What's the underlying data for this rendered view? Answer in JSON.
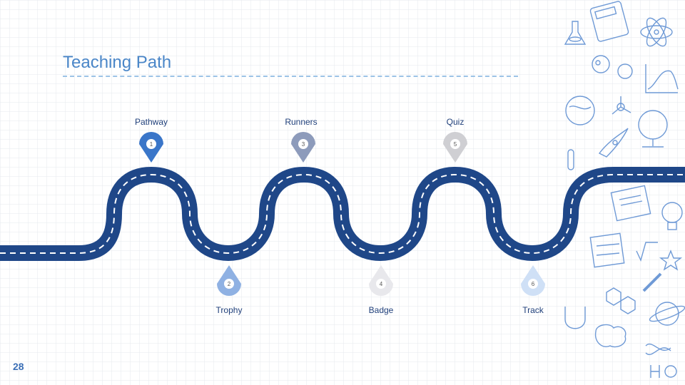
{
  "slide": {
    "title": "Teaching Path",
    "page_number": "28"
  },
  "milestones": [
    {
      "number": "1",
      "label": "Pathway",
      "color": "#3a76c9"
    },
    {
      "number": "2",
      "label": "Trophy",
      "color": "#8fb1e3"
    },
    {
      "number": "3",
      "label": "Runners",
      "color": "#8d9bbb"
    },
    {
      "number": "4",
      "label": "Badge",
      "color": "#e8e8ec"
    },
    {
      "number": "5",
      "label": "Quiz",
      "color": "#cfcfd3"
    },
    {
      "number": "6",
      "label": "Track",
      "color": "#cfe0f6"
    }
  ],
  "colors": {
    "road": "#1f4788",
    "road_dash": "#ffffff",
    "title": "#4a86c8",
    "grid": "#e6e9ee",
    "doodle": "#6f9ad6"
  }
}
